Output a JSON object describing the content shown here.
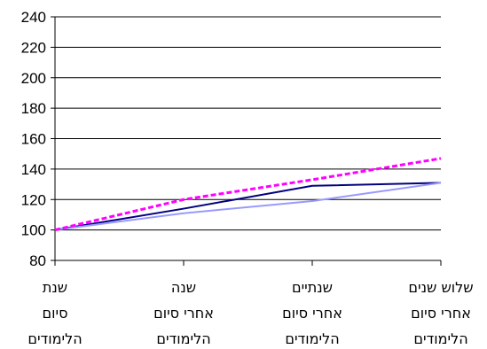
{
  "chart_data": {
    "type": "line",
    "categories": [
      [
        "שנת",
        "סיום",
        "הלימודים"
      ],
      [
        "שנה",
        "אחרי סיום",
        "הלימודים"
      ],
      [
        "שנתיים",
        "אחרי סיום",
        "הלימודים"
      ],
      [
        "שלוש שנים",
        "אחרי סיום",
        "הלימודים"
      ]
    ],
    "y_ticks": [
      "80",
      "100",
      "120",
      "140",
      "160",
      "180",
      "200",
      "220",
      "240"
    ],
    "ylim": [
      80,
      240
    ],
    "grid": true,
    "series": [
      {
        "values": [
          100,
          114,
          129,
          131
        ],
        "color": "#000080",
        "style": "solid"
      },
      {
        "values": [
          100,
          111,
          119,
          131
        ],
        "color": "#9999ff",
        "style": "solid"
      },
      {
        "values": [
          100,
          120,
          133,
          147
        ],
        "color": "#ff00ff",
        "style": "dashed"
      }
    ]
  }
}
